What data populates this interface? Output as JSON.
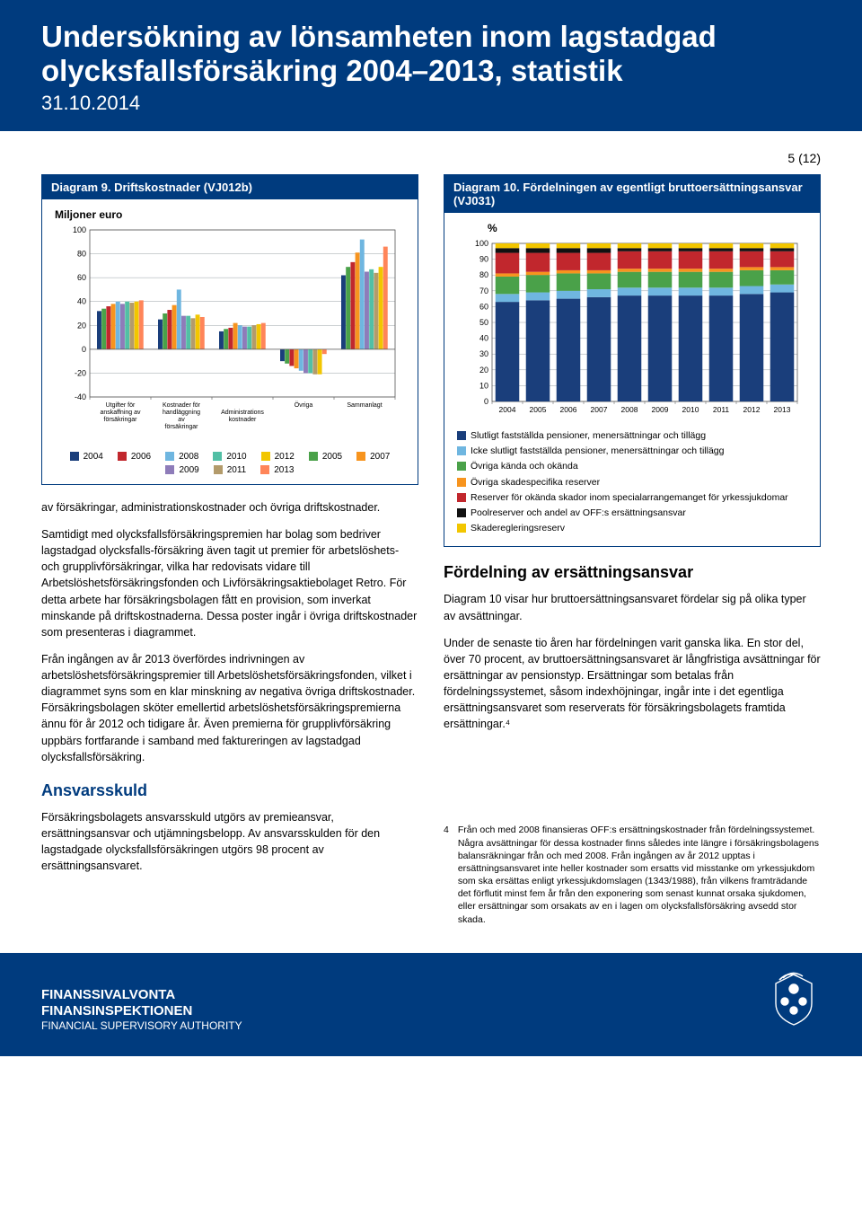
{
  "header": {
    "title": "Undersökning av lönsamheten inom lagstadgad olycksfallsförsäkring 2004–2013, statistik",
    "date": "31.10.2014"
  },
  "page_number": "5 (12)",
  "chart9": {
    "title": "Diagram 9. Driftskostnader (VJ012b)",
    "subtitle": "Miljoner euro",
    "type": "grouped-bar",
    "y_axis": {
      "min": -40,
      "max": 100,
      "step": 20,
      "ticks": [
        -40,
        -20,
        0,
        20,
        40,
        60,
        80,
        100
      ]
    },
    "background_color": "#ffffff",
    "grid_color": "#9aa0a6",
    "group_labels": [
      "Utgifter för anskaffning av försäkringar",
      "Kostnader för handläggning av försäkringar",
      "Administrations kostnader",
      "Övriga",
      "Sammanlagt"
    ],
    "series": [
      {
        "label": "2004",
        "color": "#1a3e7b"
      },
      {
        "label": "2005",
        "color": "#4aa149"
      },
      {
        "label": "2006",
        "color": "#c1272d"
      },
      {
        "label": "2007",
        "color": "#f7941e"
      },
      {
        "label": "2008",
        "color": "#6fb6e0"
      },
      {
        "label": "2009",
        "color": "#8e7cb9"
      },
      {
        "label": "2010",
        "color": "#52bfa5"
      },
      {
        "label": "2011",
        "color": "#b39b6b"
      },
      {
        "label": "2012",
        "color": "#f2c600"
      },
      {
        "label": "2013",
        "color": "#ff8559"
      }
    ],
    "data": {
      "g0": [
        32,
        34,
        36,
        38,
        40,
        38,
        40,
        39,
        40,
        41
      ],
      "g1": [
        25,
        30,
        33,
        37,
        50,
        28,
        28,
        26,
        29,
        27
      ],
      "g2": [
        15,
        17,
        18,
        22,
        20,
        19,
        19,
        20,
        21,
        22
      ],
      "g3": [
        -10,
        -12,
        -14,
        -16,
        -18,
        -20,
        -20,
        -21,
        -21,
        -4
      ],
      "g4": [
        62,
        69,
        73,
        81,
        92,
        65,
        67,
        64,
        69,
        86
      ]
    },
    "legend_layout": "grid-2x5"
  },
  "chart10": {
    "title": "Diagram 10. Fördelningen av egentligt bruttoersättningsansvar (VJ031)",
    "subtitle": "%",
    "type": "stacked-bar-100",
    "y_axis": {
      "min": 0,
      "max": 100,
      "step": 10,
      "ticks": [
        0,
        10,
        20,
        30,
        40,
        50,
        60,
        70,
        80,
        90,
        100
      ]
    },
    "background_color": "#ffffff",
    "grid_color": "#9aa0a6",
    "x_labels": [
      "2004",
      "2005",
      "2006",
      "2007",
      "2008",
      "2009",
      "2010",
      "2011",
      "2012",
      "2013"
    ],
    "segments": [
      {
        "key": "s1",
        "label": "Slutligt fastställda pensioner, menersättningar och tillägg",
        "color": "#1a3e7b"
      },
      {
        "key": "s2",
        "label": "Icke slutligt fastställda pensioner, menersättningar och tillägg",
        "color": "#6fb6e0"
      },
      {
        "key": "s3",
        "label": "Övriga kända och okända",
        "color": "#4aa149"
      },
      {
        "key": "s4",
        "label": "Övriga skadespecifika reserver",
        "color": "#f7941e"
      },
      {
        "key": "s5",
        "label": "Reserver för okända skador inom specialarrangemanget för yrkessjukdomar",
        "color": "#c1272d"
      },
      {
        "key": "s6",
        "label": "Poolreserver och andel av OFF:s ersättningsansvar",
        "color": "#111111"
      },
      {
        "key": "s7",
        "label": "Skaderegleringsreserv",
        "color": "#f2c600"
      }
    ],
    "data": [
      {
        "s1": 63,
        "s2": 5,
        "s3": 11,
        "s4": 2,
        "s5": 13,
        "s6": 3,
        "s7": 3
      },
      {
        "s1": 64,
        "s2": 5,
        "s3": 11,
        "s4": 2,
        "s5": 12,
        "s6": 3,
        "s7": 3
      },
      {
        "s1": 65,
        "s2": 5,
        "s3": 11,
        "s4": 2,
        "s5": 11,
        "s6": 3,
        "s7": 3
      },
      {
        "s1": 66,
        "s2": 5,
        "s3": 10,
        "s4": 2,
        "s5": 11,
        "s6": 3,
        "s7": 3
      },
      {
        "s1": 67,
        "s2": 5,
        "s3": 10,
        "s4": 2,
        "s5": 11,
        "s6": 2,
        "s7": 3
      },
      {
        "s1": 67,
        "s2": 5,
        "s3": 10,
        "s4": 2,
        "s5": 11,
        "s6": 2,
        "s7": 3
      },
      {
        "s1": 67,
        "s2": 5,
        "s3": 10,
        "s4": 2,
        "s5": 11,
        "s6": 2,
        "s7": 3
      },
      {
        "s1": 67,
        "s2": 5,
        "s3": 10,
        "s4": 2,
        "s5": 11,
        "s6": 2,
        "s7": 3
      },
      {
        "s1": 68,
        "s2": 5,
        "s3": 10,
        "s4": 2,
        "s5": 10,
        "s6": 2,
        "s7": 3
      },
      {
        "s1": 69,
        "s2": 5,
        "s3": 9,
        "s4": 2,
        "s5": 10,
        "s6": 2,
        "s7": 3
      }
    ]
  },
  "left_paragraphs": {
    "p1": "av försäkringar, administrationskostnader och övriga driftskostnader.",
    "p2": "Samtidigt med olycksfallsförsäkringspremien har bolag som bedriver lagstadgad olycksfalls-försäkring även tagit ut premier för arbetslöshets- och grupplivförsäkringar, vilka har redovisats vidare till Arbetslöshetsförsäkringsfonden och Livförsäkringsaktiebolaget Retro. För detta arbete har försäkringsbolagen fått en provision, som inverkat minskande på driftskostnaderna. Dessa poster ingår i övriga driftskostnader som presenteras i diagrammet.",
    "p3": "Från ingången av år 2013 överfördes indrivningen av arbetslöshetsförsäkringspremier till Arbetslöshetsförsäkringsfonden, vilket i diagrammet syns som en klar minskning av negativa övriga driftskostnader. Försäkringsbolagen sköter emellertid arbetslöshetsförsäkringspremierna ännu för år 2012 och tidigare år. Även premierna för grupplivförsäkring uppbärs fortfarande i samband med faktureringen av lagstadgad olycksfallsförsäkring.",
    "section_heading": "Ansvarsskuld",
    "p4": "Försäkringsbolagets ansvarsskuld utgörs av premieansvar, ersättningsansvar och utjämningsbelopp. Av ansvarsskulden för den lagstadgade olycksfallsförsäkringen utgörs 98 procent av ersättningsansvaret."
  },
  "right_paragraphs": {
    "section_heading": "Fördelning av ersättningsansvar",
    "p1": "Diagram 10 visar hur bruttoersättningsansvaret fördelar sig på olika typer av avsättningar.",
    "p2": "Under de senaste tio åren har fördelningen varit ganska lika. En stor del, över 70 procent, av bruttoersättningsansvaret är långfristiga avsättningar för ersättningar av pensionstyp. Ersättningar som betalas från fördelningssystemet, såsom indexhöjningar, ingår inte i det egentliga ersättningsansvaret som reserverats för försäkringsbolagets framtida ersättningar.⁴"
  },
  "footnote": {
    "num": "4",
    "text": "Från och med 2008 finansieras OFF:s ersättningskostnader från fördelningssystemet. Några avsättningar för dessa kostnader finns således inte längre i försäkringsbolagens balansräkningar från och med 2008. Från ingången av år 2012 upptas i ersättningsansvaret inte heller kostnader som ersatts vid misstanke om yrkessjukdom som ska ersättas enligt yrkessjukdomslagen (1343/1988), från vilkens framträdande det förflutit minst fem år från den exponering som senast kunnat orsaka sjukdomen, eller ersättningar som orsakats av en i lagen om olycksfallsförsäkring avsedd stor skada."
  },
  "footer": {
    "line1": "FINANSSIVALVONTA",
    "line2": "FINANSINSPEKTIONEN",
    "line3": "FINANCIAL SUPERVISORY AUTHORITY"
  }
}
